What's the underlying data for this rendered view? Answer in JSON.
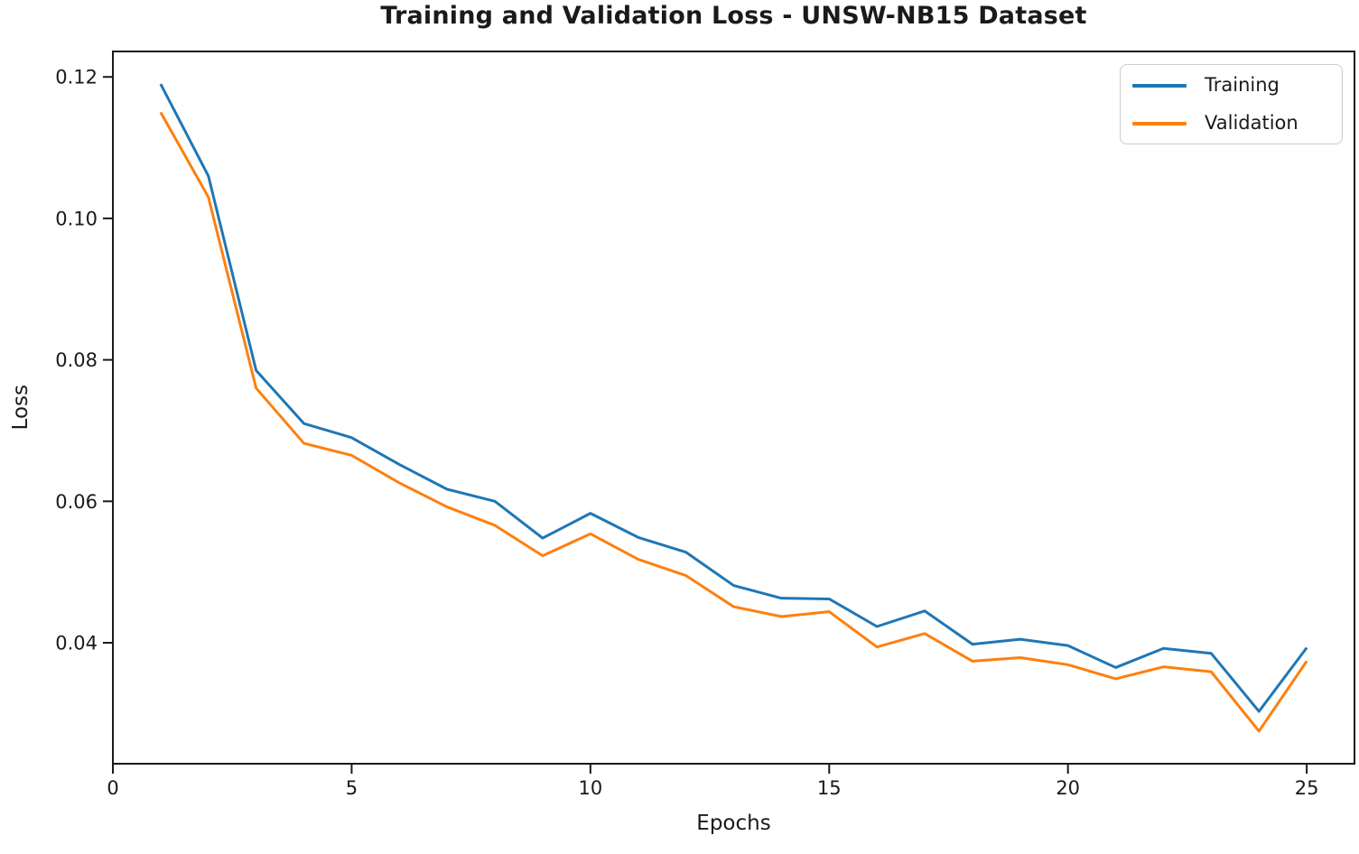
{
  "figure": {
    "title": "Training and Validation Loss - UNSW-NB15 Dataset"
  },
  "chart_data": {
    "type": "line",
    "title": "Training and Validation Loss - UNSW-NB15 Dataset",
    "xlabel": "Epochs",
    "ylabel": "Loss",
    "x": [
      1,
      2,
      3,
      4,
      5,
      6,
      7,
      8,
      9,
      10,
      11,
      12,
      13,
      14,
      15,
      16,
      17,
      18,
      19,
      20,
      21,
      22,
      23,
      24,
      25
    ],
    "series": [
      {
        "name": "Training",
        "color": "#1f77b4",
        "values": [
          0.119,
          0.106,
          0.0785,
          0.071,
          0.069,
          0.0652,
          0.0617,
          0.06,
          0.0548,
          0.0583,
          0.0549,
          0.0528,
          0.0481,
          0.0463,
          0.0462,
          0.0423,
          0.0445,
          0.0398,
          0.0405,
          0.0396,
          0.0365,
          0.0392,
          0.0385,
          0.0303,
          0.0393
        ]
      },
      {
        "name": "Validation",
        "color": "#ff7f0e",
        "values": [
          0.115,
          0.103,
          0.076,
          0.0682,
          0.0665,
          0.0626,
          0.0592,
          0.0566,
          0.0523,
          0.0554,
          0.0518,
          0.0495,
          0.0451,
          0.0437,
          0.0444,
          0.0394,
          0.0413,
          0.0374,
          0.0379,
          0.0369,
          0.0349,
          0.0366,
          0.0359,
          0.0275,
          0.0374
        ]
      }
    ],
    "xlim": [
      0,
      26
    ],
    "ylim": [
      0.0229,
      0.1236
    ],
    "xticks": {
      "values": [
        0,
        5,
        10,
        15,
        20,
        25
      ],
      "labels": [
        "0",
        "5",
        "10",
        "15",
        "20",
        "25"
      ]
    },
    "yticks": {
      "values": [
        0.04,
        0.06,
        0.08,
        0.1,
        0.12
      ],
      "labels": [
        "0.04",
        "0.06",
        "0.08",
        "0.10",
        "0.12"
      ]
    },
    "grid": false,
    "legend_position": "upper right",
    "axis_color": "#1a1a1a",
    "tick_label_color": "#1a1a1a",
    "line_width": 3
  }
}
